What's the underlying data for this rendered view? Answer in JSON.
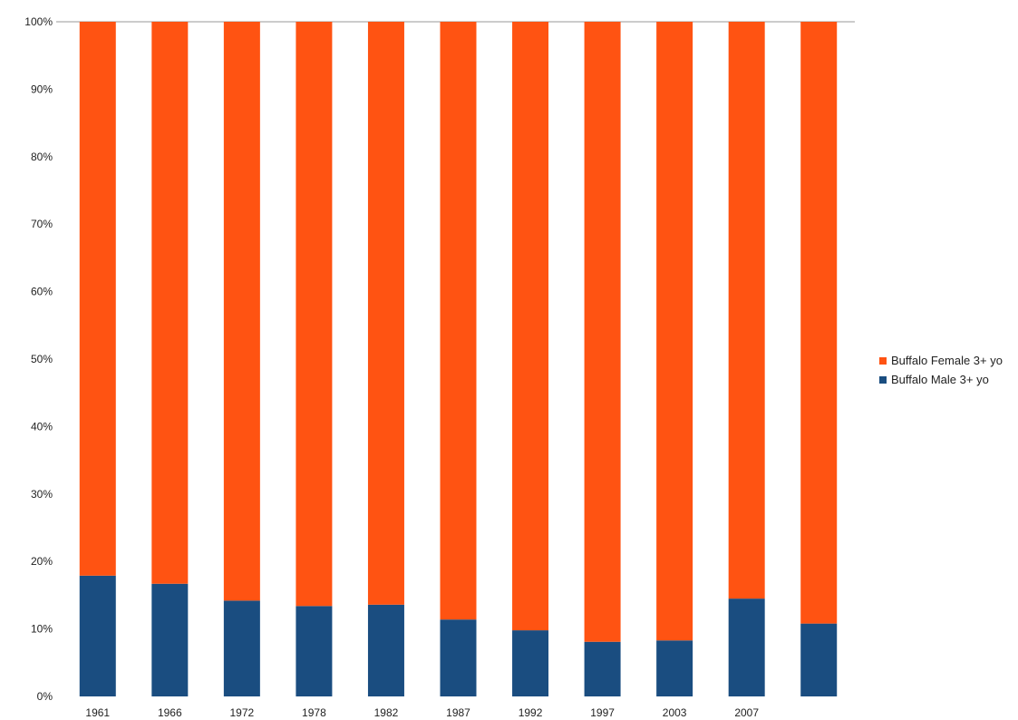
{
  "chart_data": {
    "type": "bar",
    "stacked": true,
    "normalized_percent": true,
    "categories": [
      "1961",
      "1966",
      "1972",
      "1978",
      "1982",
      "1987",
      "1992",
      "1997",
      "2003",
      "2007",
      ""
    ],
    "series": [
      {
        "name": "Buffalo Male 3+ yo",
        "color": "#1a4d80",
        "values": [
          17.9,
          16.7,
          14.2,
          13.4,
          13.6,
          11.4,
          9.8,
          8.1,
          8.3,
          14.5,
          10.8
        ]
      },
      {
        "name": "Buffalo Female 3+ yo",
        "color": "#ff5312",
        "values": [
          82.1,
          83.3,
          85.8,
          86.6,
          86.4,
          88.6,
          90.2,
          91.9,
          91.7,
          85.5,
          89.2
        ]
      }
    ],
    "y_ticks": [
      "0%",
      "10%",
      "20%",
      "30%",
      "40%",
      "50%",
      "60%",
      "70%",
      "80%",
      "90%",
      "100%"
    ],
    "ylim": [
      0,
      100
    ],
    "grid": false,
    "legend_position": "right",
    "legend": [
      {
        "label": "Buffalo Female 3+ yo",
        "color": "#ff5312"
      },
      {
        "label": "Buffalo Male 3+ yo",
        "color": "#1a4d80"
      }
    ]
  }
}
